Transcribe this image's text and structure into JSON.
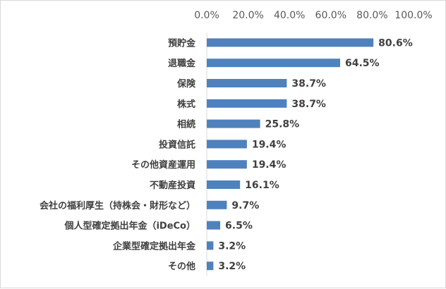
{
  "chart_data": {
    "type": "bar",
    "orientation": "horizontal",
    "categories": [
      "預貯金",
      "退職金",
      "保険",
      "株式",
      "相続",
      "投資信託",
      "その他資産運用",
      "不動産投資",
      "会社の福利厚生（持株会・財形など）",
      "個人型確定拠出年金（iDeCo）",
      "企業型確定拠出年金",
      "その他"
    ],
    "values": [
      80.6,
      64.5,
      38.7,
      38.7,
      25.8,
      19.4,
      19.4,
      16.1,
      9.7,
      6.5,
      3.2,
      3.2
    ],
    "data_labels": [
      "80.6%",
      "64.5%",
      "38.7%",
      "38.7%",
      "25.8%",
      "19.4%",
      "19.4%",
      "16.1%",
      "9.7%",
      "6.5%",
      "3.2%",
      "3.2%"
    ],
    "x_ticks": [
      "0.0%",
      "20.0%",
      "40.0%",
      "60.0%",
      "80.0%",
      "100.0%"
    ],
    "xlim": [
      0,
      100
    ],
    "x_axis_position": "top",
    "grid": false,
    "bar_color": "#4f81bd",
    "title": "",
    "xlabel": "",
    "ylabel": ""
  }
}
